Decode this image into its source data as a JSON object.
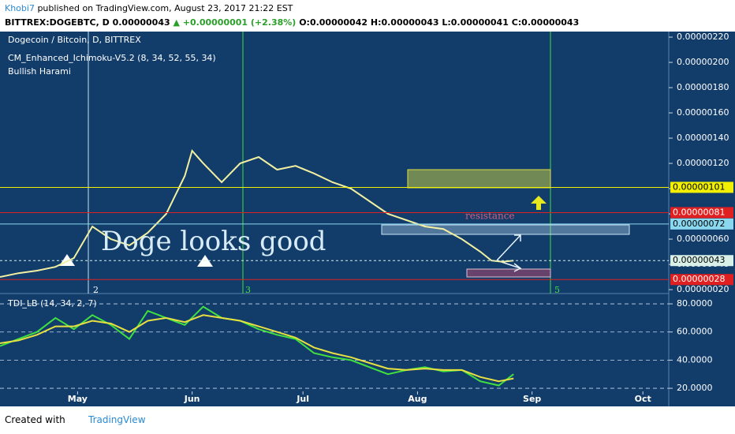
{
  "header": {
    "author": "Khobi7",
    "published": "published on TradingView.com, August 23, 2017 21:22 EST",
    "symbol": "BITTREX:DOGEBTC, D",
    "price": "0.00000043",
    "change": "▲ +0.00000001 (+2.38%)",
    "open": "O:0.00000042",
    "high": "H:0.00000043",
    "low": "L:0.00000041",
    "close": "C:0.00000043"
  },
  "footer": {
    "created": "Created with",
    "brand": "TradingView"
  },
  "chart_data": [
    {
      "type": "line",
      "title": "Dogecoin / Bitcoin, D, BITTREX",
      "indicators": [
        "CM_Enhanced_Ichimoku-V5.2 (8, 34, 52, 55, 34)",
        "Bullish Harami"
      ],
      "annotations": [
        "Doge looks good",
        "resistance",
        "2",
        "3",
        "5"
      ],
      "color": "#f2f0a0",
      "x": [
        100,
        105,
        110,
        115,
        120,
        125,
        130,
        135,
        140,
        145,
        150,
        152,
        155,
        160,
        165,
        170,
        175,
        180,
        185,
        190,
        195,
        200,
        205,
        210,
        215,
        220,
        225,
        230,
        233,
        236,
        239
      ],
      "values": [
        3e-07,
        3.3e-07,
        3.5e-07,
        3.8e-07,
        4.5e-07,
        7e-07,
        6e-07,
        5.5e-07,
        6.5e-07,
        8e-07,
        1.1e-06,
        1.3e-06,
        1.2e-06,
        1.05e-06,
        1.2e-06,
        1.25e-06,
        1.15e-06,
        1.18e-06,
        1.12e-06,
        1.05e-06,
        1e-06,
        9e-07,
        8e-07,
        7.5e-07,
        7e-07,
        6.8e-07,
        6e-07,
        5e-07,
        4.3e-07,
        4.2e-07,
        4.3e-07
      ],
      "xlim": [
        100,
        281
      ],
      "xticks": [
        {
          "value": 121,
          "label": "May"
        },
        {
          "value": 152,
          "label": "Jun"
        },
        {
          "value": 182,
          "label": "Jul"
        },
        {
          "value": 213,
          "label": "Aug"
        },
        {
          "value": 244,
          "label": "Sep"
        },
        {
          "value": 274,
          "label": "Oct"
        }
      ],
      "ylim": [
        1.69e-07,
        2.244e-06
      ],
      "yticks": [
        {
          "value": 2.2e-06,
          "label": "0.00000220"
        },
        {
          "value": 2e-06,
          "label": "0.00000200"
        },
        {
          "value": 1.8e-06,
          "label": "0.00000180"
        },
        {
          "value": 1.6e-06,
          "label": "0.00000160"
        },
        {
          "value": 1.4e-06,
          "label": "0.00000140"
        },
        {
          "value": 1.2e-06,
          "label": "0.00000120"
        },
        {
          "value": 1e-06,
          "label": "0.00000100"
        },
        {
          "value": 8e-07,
          "label": "0.00000080"
        },
        {
          "value": 6e-07,
          "label": "0.00000060"
        },
        {
          "value": 4e-07,
          "label": "0.00000040"
        },
        {
          "value": 2e-07,
          "label": "0.00000020"
        }
      ],
      "price_lines": [
        {
          "value": 1.01e-06,
          "label": "0.00000101",
          "color": "#f0f000"
        },
        {
          "value": 8.1e-07,
          "label": "0.00000081",
          "color": "#e02020"
        },
        {
          "value": 7.2e-07,
          "label": "0.00000072",
          "color": "#8ad8f0"
        },
        {
          "value": 4.3e-07,
          "label": "0.00000043",
          "color": "#d8f0e8"
        },
        {
          "value": 2.8e-07,
          "label": "0.00000028",
          "color": "#e02020"
        }
      ]
    },
    {
      "type": "line",
      "title": "TDI_LB (14, 34, 2, 7)",
      "x": [
        100,
        105,
        110,
        115,
        120,
        125,
        130,
        135,
        140,
        145,
        150,
        155,
        160,
        165,
        170,
        175,
        180,
        185,
        190,
        195,
        200,
        205,
        210,
        215,
        220,
        225,
        230,
        235,
        239
      ],
      "series": [
        {
          "color": "#40e040",
          "values": [
            50,
            55,
            60,
            70,
            62,
            72,
            65,
            55,
            75,
            70,
            65,
            78,
            70,
            68,
            62,
            58,
            55,
            45,
            42,
            40,
            35,
            30,
            33,
            35,
            32,
            33,
            25,
            22,
            30
          ]
        },
        {
          "color": "#e8e040",
          "values": [
            52,
            54,
            58,
            64,
            64,
            68,
            66,
            60,
            68,
            70,
            67,
            72,
            70,
            68,
            64,
            60,
            56,
            49,
            45,
            42,
            38,
            34,
            33,
            34,
            33,
            33,
            28,
            25,
            27
          ]
        }
      ],
      "ylim": [
        17.8,
        86.2
      ],
      "yticks": [
        {
          "value": 80,
          "label": "80.0000"
        },
        {
          "value": 60,
          "label": "60.0000"
        },
        {
          "value": 40,
          "label": "40.0000"
        },
        {
          "value": 20,
          "label": "20.0000"
        }
      ]
    }
  ]
}
